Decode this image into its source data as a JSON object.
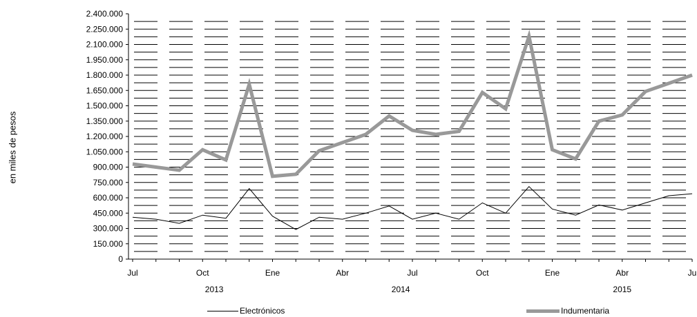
{
  "chart_data": {
    "type": "line",
    "ylabel": "en miles de pesos",
    "ylim": [
      0,
      2400000
    ],
    "yticks": [
      "0",
      "150.000",
      "300.000",
      "450.000",
      "600.000",
      "750.000",
      "900.000",
      "1.050.000",
      "1.200.000",
      "1.350.000",
      "1.500.000",
      "1.650.000",
      "1.800.000",
      "1.950.000",
      "2.100.000",
      "2.250.000",
      "2.400.000"
    ],
    "x": [
      "2013-07",
      "2013-08",
      "2013-09",
      "2013-10",
      "2013-11",
      "2013-12",
      "2014-01",
      "2014-02",
      "2014-03",
      "2014-04",
      "2014-05",
      "2014-06",
      "2014-07",
      "2014-08",
      "2014-09",
      "2014-10",
      "2014-11",
      "2014-12",
      "2015-01",
      "2015-02",
      "2015-03",
      "2015-04",
      "2015-05",
      "2015-06",
      "2015-07"
    ],
    "xtick_labels": [
      "Jul",
      "Oct",
      "Ene",
      "Abr",
      "Jul",
      "Oct",
      "Ene",
      "Abr",
      "Ju"
    ],
    "year_labels": [
      "2013",
      "2014",
      "2015"
    ],
    "grid": true,
    "legend_position": "bottom",
    "series": [
      {
        "name": "Electrónicos",
        "color": "#000000",
        "values": [
          410000,
          390000,
          350000,
          430000,
          400000,
          690000,
          420000,
          290000,
          410000,
          390000,
          450000,
          520000,
          390000,
          450000,
          390000,
          550000,
          450000,
          710000,
          490000,
          430000,
          530000,
          480000,
          550000,
          620000,
          640000
        ]
      },
      {
        "name": "Indumentaria",
        "color": "#999999",
        "values": [
          930000,
          900000,
          870000,
          1070000,
          970000,
          1710000,
          810000,
          830000,
          1060000,
          1140000,
          1220000,
          1400000,
          1260000,
          1220000,
          1250000,
          1630000,
          1470000,
          2180000,
          1070000,
          980000,
          1350000,
          1410000,
          1640000,
          1720000,
          1800000
        ]
      }
    ]
  }
}
